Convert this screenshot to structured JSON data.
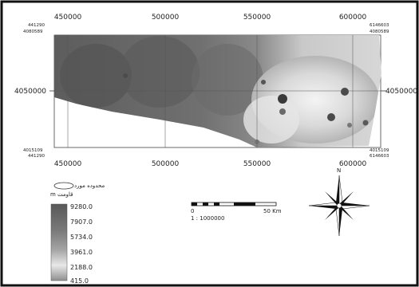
{
  "map": {
    "x_ticks": [
      "450000",
      "500000",
      "550000",
      "600000"
    ],
    "y_tick": "4050000",
    "corners": {
      "top_left_x": "441290",
      "top_left_y": "4080589",
      "top_right_x": "6146603",
      "top_right_y": "4080589",
      "bottom_left_y": "4015109",
      "bottom_left_x": "441290",
      "bottom_right_y": "4015109",
      "bottom_right_x": "6146603"
    }
  },
  "legend": {
    "oval_label": "محدوده مورد",
    "title": "m قاومت",
    "values": [
      "9280.0",
      "7907.0",
      "5734.0",
      "3961.0",
      "2188.0",
      "415.0"
    ]
  },
  "scale_bar": {
    "start": "0",
    "end": "50 Km",
    "ratio": "1 : 1000000"
  },
  "compass": {
    "north_label": "N"
  },
  "colors": {
    "high": "#555555",
    "mid": "#9b9b9b",
    "low": "#efefef",
    "frame": "#111111"
  }
}
